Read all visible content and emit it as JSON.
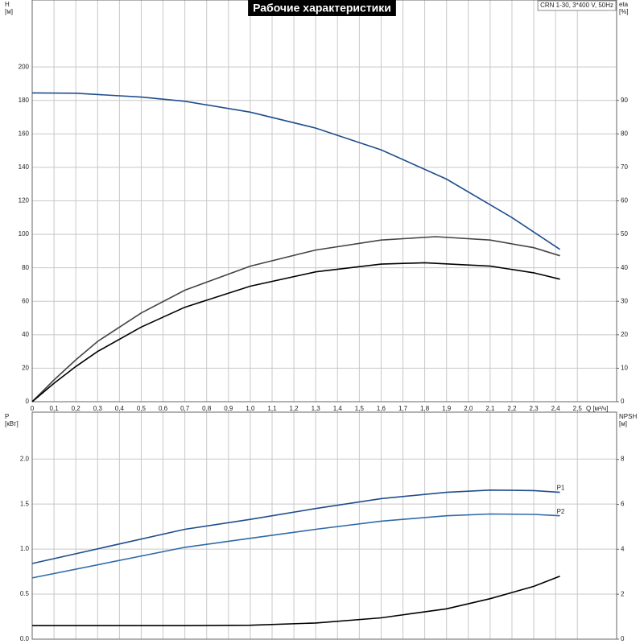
{
  "chart_data": [
    {
      "type": "line",
      "title": "Рабочие характеристики",
      "subtitle": "CRN 1-30, 3*400 V, 50Hz",
      "ylabel": "H",
      "yunit": "[м]",
      "y2label": "eta",
      "y2unit": "[%]",
      "xlabel": "Q [м³/ч]",
      "xlim": [
        0,
        2.68
      ],
      "ylim": [
        0,
        240
      ],
      "y2lim": [
        0,
        120
      ],
      "grid": true,
      "xticks": [
        0,
        {
          "value": 0.1,
          "label": "0,1"
        },
        {
          "value": 0.2,
          "label": "0,2"
        },
        {
          "value": 0.3,
          "label": "0,3"
        },
        {
          "value": 0.4,
          "label": "0,4"
        },
        {
          "value": 0.5,
          "label": "0,5"
        },
        {
          "value": 0.6,
          "label": "0,6"
        },
        {
          "value": 0.7,
          "label": "0,7"
        },
        {
          "value": 0.8,
          "label": "0,8"
        },
        {
          "value": 0.9,
          "label": "0,9"
        },
        {
          "value": 1.0,
          "label": "1,0"
        },
        {
          "value": 1.1,
          "label": "1,1"
        },
        {
          "value": 1.2,
          "label": "1,2"
        },
        {
          "value": 1.3,
          "label": "1,3"
        },
        {
          "value": 1.4,
          "label": "1,4"
        },
        {
          "value": 1.5,
          "label": "1,5"
        },
        {
          "value": 1.6,
          "label": "1,6"
        },
        {
          "value": 1.7,
          "label": "1,7"
        },
        {
          "value": 1.8,
          "label": "1,8"
        },
        {
          "value": 1.9,
          "label": "1,9"
        },
        {
          "value": 2.0,
          "label": "2,0"
        },
        {
          "value": 2.1,
          "label": "2,1"
        },
        {
          "value": 2.2,
          "label": "2,2"
        },
        {
          "value": 2.3,
          "label": "2,3"
        },
        {
          "value": 2.4,
          "label": "2,4"
        },
        {
          "value": 2.5,
          "label": "2,5"
        }
      ],
      "yticks": [
        0,
        20,
        40,
        60,
        80,
        100,
        120,
        140,
        160,
        180,
        200
      ],
      "y2ticks": [
        0,
        10,
        20,
        30,
        40,
        50,
        60,
        70,
        80,
        90
      ],
      "series": [
        {
          "color": "#1f4e8c",
          "axis": "y",
          "x": [
            0,
            0.2,
            0.5,
            0.7,
            1.0,
            1.3,
            1.6,
            1.9,
            2.2,
            2.42
          ],
          "values": [
            184.5,
            184.3,
            182,
            179.5,
            173,
            163.5,
            150.5,
            133,
            110,
            91
          ]
        },
        {
          "color": "#444444",
          "axis": "y2",
          "x": [
            0,
            0.1,
            0.2,
            0.3,
            0.5,
            0.7,
            1.0,
            1.3,
            1.6,
            1.85,
            2.1,
            2.3,
            2.42
          ],
          "values": [
            0,
            6.5,
            12.5,
            18,
            26.5,
            33.3,
            40.5,
            45.3,
            48.3,
            49.3,
            48.3,
            46,
            43.6
          ]
        },
        {
          "color": "#000000",
          "axis": "y2",
          "x": [
            0,
            0.1,
            0.2,
            0.3,
            0.5,
            0.7,
            1.0,
            1.3,
            1.6,
            1.8,
            2.1,
            2.3,
            2.42
          ],
          "values": [
            0,
            5.5,
            10.5,
            15,
            22.3,
            28.2,
            34.5,
            38.8,
            41.1,
            41.5,
            40.5,
            38.5,
            36.6
          ]
        }
      ]
    },
    {
      "type": "line",
      "ylabel": "P",
      "yunit": "[кВт]",
      "y2label": "NPSH",
      "y2unit": "[м]",
      "xlim": [
        0,
        2.68
      ],
      "ylim": [
        0,
        2.52
      ],
      "y2lim": [
        0,
        10.1
      ],
      "grid": true,
      "yticks": [
        {
          "value": 0,
          "label": "0.0"
        },
        0.5,
        {
          "value": 1,
          "label": "1.0"
        },
        1.5,
        {
          "value": 2,
          "label": "2.0"
        }
      ],
      "y2ticks": [
        0,
        2,
        4,
        6,
        8
      ],
      "series": [
        {
          "name": "P1",
          "color": "#1f4e8c",
          "axis": "y",
          "x": [
            0,
            0.7,
            1.0,
            1.3,
            1.6,
            1.9,
            2.1,
            2.3,
            2.42
          ],
          "values": [
            0.84,
            1.22,
            1.33,
            1.45,
            1.56,
            1.63,
            1.655,
            1.65,
            1.63
          ]
        },
        {
          "name": "P2",
          "color": "#2f6aa8",
          "axis": "y",
          "x": [
            0,
            0.7,
            1.0,
            1.3,
            1.6,
            1.9,
            2.1,
            2.3,
            2.42
          ],
          "values": [
            0.68,
            1.02,
            1.12,
            1.22,
            1.31,
            1.37,
            1.39,
            1.385,
            1.37
          ]
        },
        {
          "color": "#000000",
          "axis": "y2",
          "x": [
            0,
            0.7,
            1.0,
            1.3,
            1.6,
            1.9,
            2.1,
            2.3,
            2.42
          ],
          "values": [
            0.6,
            0.6,
            0.62,
            0.72,
            0.95,
            1.35,
            1.8,
            2.35,
            2.8
          ]
        }
      ]
    }
  ]
}
